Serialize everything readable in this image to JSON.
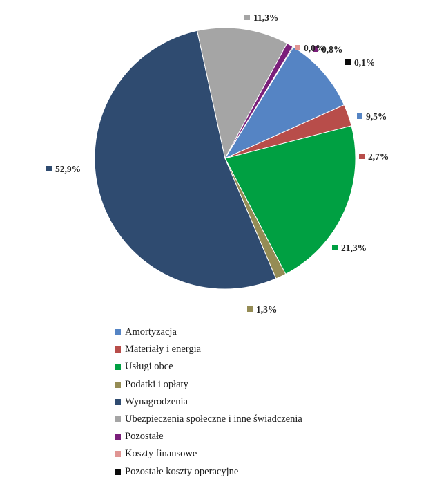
{
  "chart_data": {
    "type": "pie",
    "title": "",
    "start_angle_deg": 0,
    "direction": "clockwise",
    "slices": [
      {
        "label": "Amortyzacja",
        "value": 9.5,
        "value_label": "9,5%",
        "color": "#5584c4",
        "label_side": "right"
      },
      {
        "label": "Materiały i energia",
        "value": 2.7,
        "value_label": "2,7%",
        "color": "#b84d4a",
        "label_side": "right"
      },
      {
        "label": "Usługi obce",
        "value": 21.3,
        "value_label": "21,3%",
        "color": "#00a042",
        "label_side": "right"
      },
      {
        "label": "Podatki i opłaty",
        "value": 1.3,
        "value_label": "1,3%",
        "color": "#958c55",
        "label_side": "right"
      },
      {
        "label": "Wynagrodzenia",
        "value": 52.9,
        "value_label": "52,9%",
        "color": "#2f4b70",
        "label_side": "left"
      },
      {
        "label": "Ubezpieczenia społeczne i inne świadczenia",
        "value": 11.3,
        "value_label": "11,3%",
        "color": "#a5a5a5",
        "label_side": "right"
      },
      {
        "label": "Pozostałe",
        "value": 0.8,
        "value_label": "0,8%",
        "color": "#7a1f7a",
        "label_side": "right"
      },
      {
        "label": "Koszty finansowe",
        "value": 0.0,
        "value_label": "0,0%",
        "color": "#e09593",
        "label_side": "right"
      },
      {
        "label": "Pozostałe koszty operacyjne",
        "value": 0.1,
        "value_label": "0,1%",
        "color": "#0a0a0a",
        "label_side": "right"
      }
    ],
    "legend": {
      "position": "bottom"
    }
  }
}
